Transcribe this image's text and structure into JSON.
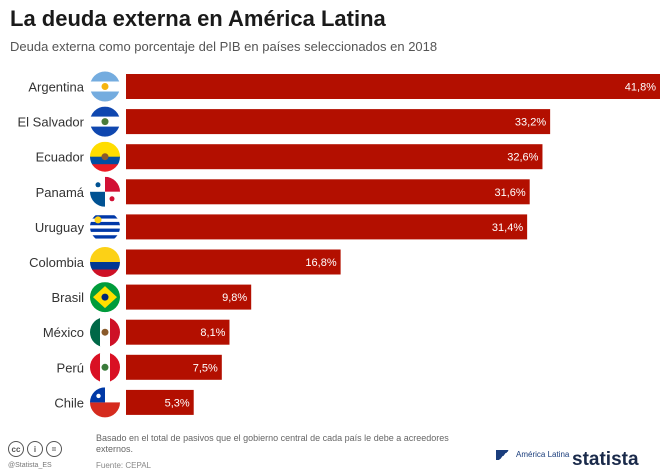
{
  "title": "La deuda externa en América Latina",
  "subtitle": "Deuda externa como porcentaje del PIB en países seleccionados en 2018",
  "chart_data": {
    "type": "bar",
    "orientation": "horizontal",
    "categories": [
      "Argentina",
      "El Salvador",
      "Ecuador",
      "Panamá",
      "Uruguay",
      "Colombia",
      "Brasil",
      "México",
      "Perú",
      "Chile"
    ],
    "values": [
      41.8,
      33.2,
      32.6,
      31.6,
      31.4,
      16.8,
      9.8,
      8.1,
      7.5,
      5.3
    ],
    "value_labels": [
      "41,8%",
      "33,2%",
      "32,6%",
      "31,6%",
      "31,4%",
      "16,8%",
      "9,8%",
      "8,1%",
      "7,5%",
      "5,3%"
    ],
    "xlim": [
      0,
      41.8
    ],
    "bar_color": "#b30f00",
    "grid": false,
    "legend": "none"
  },
  "flags": [
    {
      "country": "Argentina",
      "icon": "argentina-flag-icon",
      "bands": [
        "#74acdf",
        "#ffffff",
        "#74acdf"
      ],
      "dir": "h",
      "emblem": "#f6b40e"
    },
    {
      "country": "El Salvador",
      "icon": "el-salvador-flag-icon",
      "bands": [
        "#0f47af",
        "#ffffff",
        "#0f47af"
      ],
      "dir": "h",
      "emblem": "#4a7b3a"
    },
    {
      "country": "Ecuador",
      "icon": "ecuador-flag-icon",
      "bands": [
        "#ffdd00",
        "#ffdd00",
        "#034ea2",
        "#ed1c24"
      ],
      "dir": "h",
      "emblem": "#8a5a2b"
    },
    {
      "country": "Panamá",
      "icon": "panama-flag-icon",
      "quarters": [
        "#ffffff",
        "#d21034",
        "#005293",
        "#ffffff"
      ]
    },
    {
      "country": "Uruguay",
      "icon": "uruguay-flag-icon",
      "bands": [
        "#ffffff",
        "#0038a8",
        "#ffffff",
        "#0038a8",
        "#ffffff",
        "#0038a8",
        "#ffffff",
        "#0038a8",
        "#ffffff"
      ],
      "dir": "h",
      "emblem": "#fcd116"
    },
    {
      "country": "Colombia",
      "icon": "colombia-flag-icon",
      "bands": [
        "#fcd116",
        "#fcd116",
        "#003893",
        "#ce1126"
      ],
      "dir": "h"
    },
    {
      "country": "Brasil",
      "icon": "brazil-flag-icon",
      "bands": [
        "#009c3b"
      ],
      "dir": "h",
      "diamond": "#ffdf00",
      "emblem": "#002776"
    },
    {
      "country": "México",
      "icon": "mexico-flag-icon",
      "bands": [
        "#006847",
        "#ffffff",
        "#ce1126"
      ],
      "dir": "v",
      "emblem": "#8a5a2b"
    },
    {
      "country": "Perú",
      "icon": "peru-flag-icon",
      "bands": [
        "#d91023",
        "#ffffff",
        "#d91023"
      ],
      "dir": "v",
      "emblem": "#3a7b3a"
    },
    {
      "country": "Chile",
      "icon": "chile-flag-icon",
      "bands": [
        "#ffffff",
        "#d52b1e"
      ],
      "dir": "h",
      "canton": "#0039a6"
    }
  ],
  "footer": {
    "note": "Basado en el total de pasivos que el gobierno central de cada país le debe a acreedores externos.",
    "source": "Fuente: CEPAL",
    "license_label": "@Statista_ES",
    "license_icons": [
      "cc-icon",
      "by-icon",
      "nd-icon"
    ],
    "license_glyphs": [
      "cc",
      "i",
      "="
    ],
    "brand_partner": "América Latina",
    "brand": "statista"
  }
}
